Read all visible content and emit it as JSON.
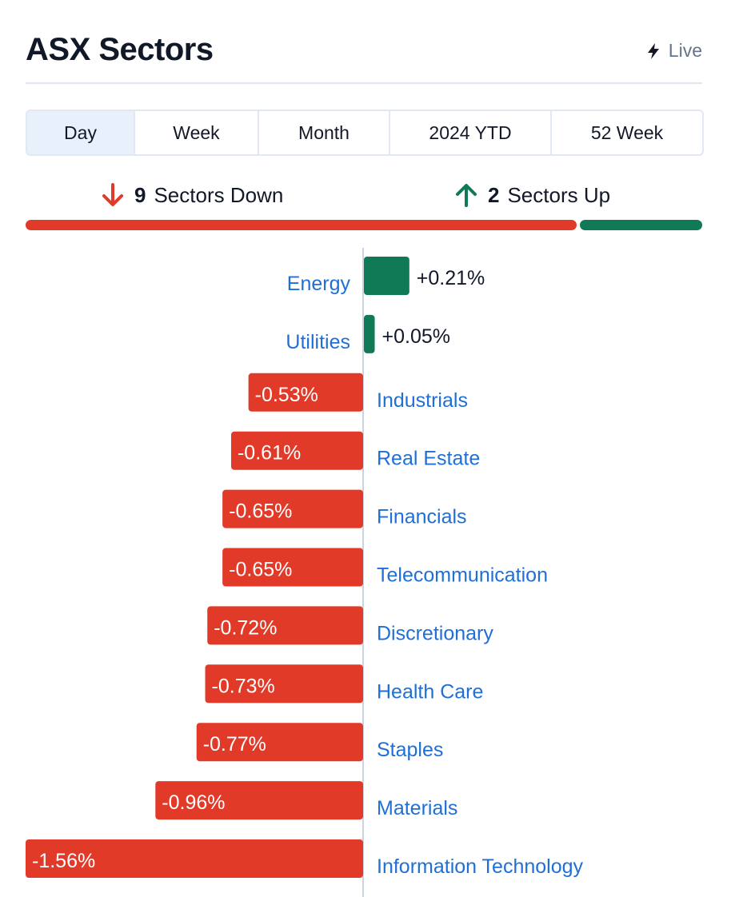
{
  "header": {
    "title": "ASX Sectors",
    "live_label": "Live"
  },
  "tabs": [
    {
      "label": "Day",
      "active": true
    },
    {
      "label": "Week",
      "active": false
    },
    {
      "label": "Month",
      "active": false
    },
    {
      "label": "2024 YTD",
      "active": false
    },
    {
      "label": "52 Week",
      "active": false
    }
  ],
  "summary": {
    "down_count": "9",
    "down_label": "Sectors Down",
    "up_count": "2",
    "up_label": "Sectors Up"
  },
  "colors": {
    "down": "#e23a28",
    "up": "#0f7a55",
    "link": "#1f6fd6",
    "muted": "#64748b"
  },
  "chart_data": {
    "type": "bar",
    "orientation": "horizontal",
    "categories": [
      "Energy",
      "Utilities",
      "Industrials",
      "Real Estate",
      "Financials",
      "Telecommunication",
      "Discretionary",
      "Health Care",
      "Staples",
      "Materials",
      "Information Technology"
    ],
    "values": [
      0.21,
      0.05,
      -0.53,
      -0.61,
      -0.65,
      -0.65,
      -0.72,
      -0.73,
      -0.77,
      -0.96,
      -1.56
    ],
    "labels": [
      "+0.21%",
      "+0.05%",
      "-0.53%",
      "-0.61%",
      "-0.65%",
      "-0.65%",
      "-0.72%",
      "-0.73%",
      "-0.77%",
      "-0.96%",
      "-1.56%"
    ],
    "unit": "%"
  }
}
